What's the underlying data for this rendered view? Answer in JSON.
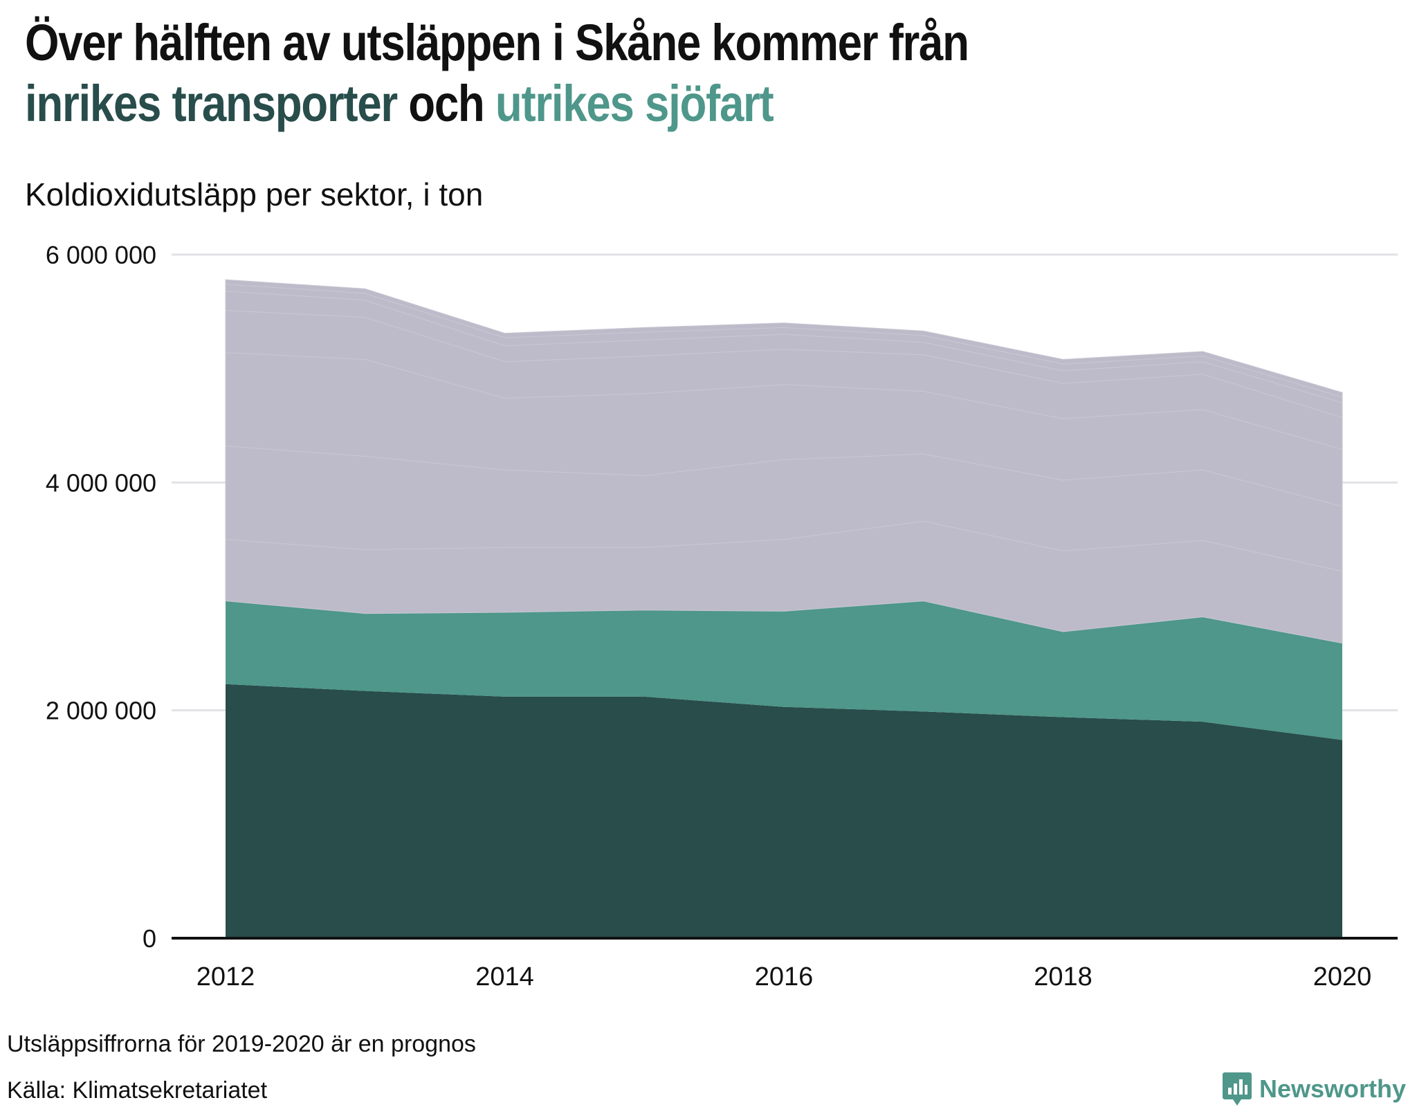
{
  "header": {
    "title_line1": "Över hälften av utsläppen i Skåne kommer från",
    "title_hl1": "inrikes transporter",
    "title_mid": " och ",
    "title_hl2": "utrikes sjöfart",
    "subtitle": "Koldioxidutsläpp per sektor, i ton"
  },
  "footer": {
    "note": "Utsläppsiffrorna för 2019-2020 är en prognos",
    "source": "Källa: Klimatsekretariatet",
    "brand": "Newsworthy",
    "brand_icon": "newsworthy-logo-icon"
  },
  "colors": {
    "inrikes_transporter": "#284d4b",
    "utrikes_sjofart": "#4e978a",
    "other_sectors": "#bdbbc9",
    "baseline": "#111111",
    "grid": "#e2e2e6"
  },
  "chart_data": {
    "type": "area",
    "stacked": true,
    "x": [
      2012,
      2013,
      2014,
      2015,
      2016,
      2017,
      2018,
      2019,
      2020
    ],
    "xticks": [
      "2012",
      "2014",
      "2016",
      "2018",
      "2020"
    ],
    "yticks": [
      "0",
      "2 000 000",
      "4 000 000",
      "6 000 000"
    ],
    "ylim": [
      0,
      6000000
    ],
    "grid": true,
    "legend": "none",
    "series": [
      {
        "values": [
          2230000,
          2170000,
          2120000,
          2120000,
          2030000,
          1990000,
          1940000,
          1900000,
          1740000
        ],
        "color": "#284d4b"
      },
      {
        "values": [
          730000,
          680000,
          740000,
          760000,
          840000,
          970000,
          750000,
          920000,
          850000
        ],
        "color": "#4e978a"
      },
      {
        "values": [
          540000,
          560000,
          570000,
          550000,
          630000,
          700000,
          710000,
          670000,
          630000
        ],
        "color": "#bdbbc9"
      },
      {
        "values": [
          820000,
          820000,
          680000,
          630000,
          700000,
          590000,
          620000,
          620000,
          570000
        ],
        "color": "#bdbbc9"
      },
      {
        "values": [
          820000,
          850000,
          630000,
          720000,
          660000,
          550000,
          540000,
          530000,
          500000
        ],
        "color": "#bdbbc9"
      },
      {
        "values": [
          370000,
          370000,
          320000,
          330000,
          310000,
          320000,
          310000,
          310000,
          280000
        ],
        "color": "#bdbbc9"
      },
      {
        "values": [
          170000,
          150000,
          140000,
          140000,
          130000,
          110000,
          110000,
          110000,
          130000
        ],
        "color": "#bdbbc9"
      },
      {
        "values": [
          60000,
          60000,
          70000,
          70000,
          60000,
          60000,
          60000,
          50000,
          50000
        ],
        "color": "#bdbbc9"
      },
      {
        "values": [
          40000,
          40000,
          40000,
          40000,
          40000,
          40000,
          40000,
          40000,
          40000
        ],
        "color": "#bdbbc9"
      }
    ]
  }
}
